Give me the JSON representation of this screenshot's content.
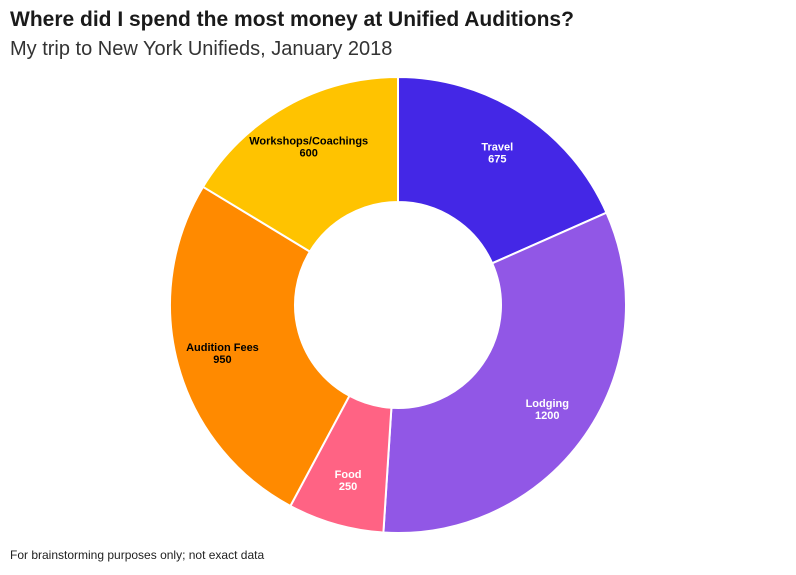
{
  "header": {
    "title": "Where did I spend the most money at Unified Auditions?",
    "subtitle": "My trip to New York Unifieds, January 2018"
  },
  "footer": {
    "note": "For brainstorming purposes only; not exact data"
  },
  "chart_data": {
    "type": "pie",
    "title": "Where did I spend the most money at Unified Auditions?",
    "subtitle": "My trip to New York Unifieds, January 2018",
    "donut": true,
    "legend": "none",
    "slices": [
      {
        "label": "Travel",
        "value": 675,
        "color": "#4427e6",
        "label_color": "#ffffff"
      },
      {
        "label": "Lodging",
        "value": 1200,
        "color": "#9157e6",
        "label_color": "#ffffff"
      },
      {
        "label": "Food",
        "value": 250,
        "color": "#ff6384",
        "label_color": "#ffffff"
      },
      {
        "label": "Audition Fees",
        "value": 950,
        "color": "#ff8a00",
        "label_color": "#000000"
      },
      {
        "label": "Workshops/Coachings",
        "value": 600,
        "color": "#ffc300",
        "label_color": "#000000"
      }
    ]
  }
}
